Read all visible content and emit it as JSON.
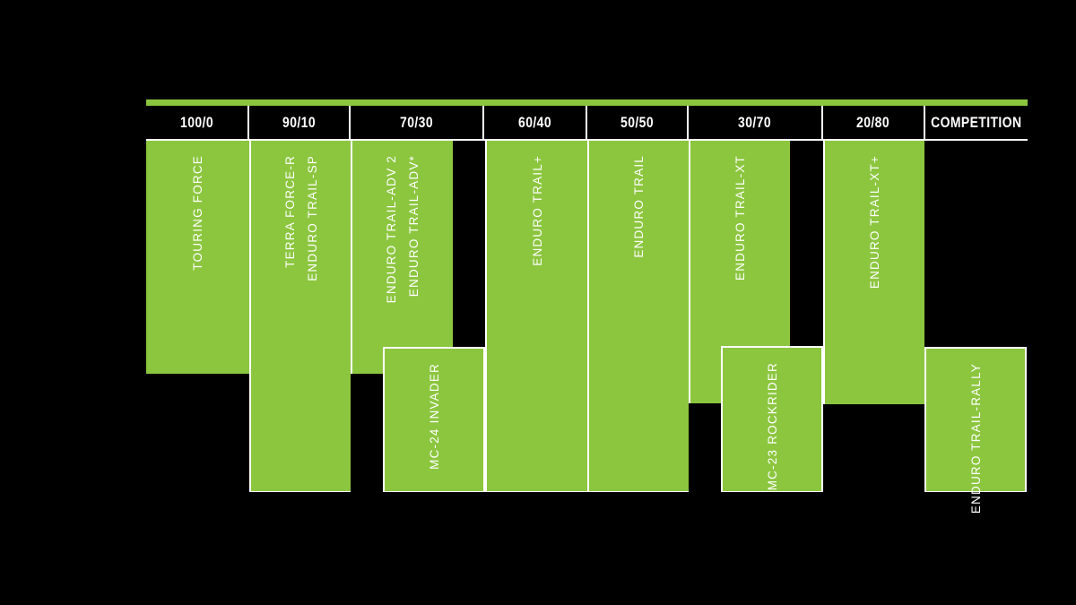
{
  "colors": {
    "background": "#000000",
    "green": "#8CC63F",
    "text": "#FFFFFF"
  },
  "header": {
    "columns": [
      "100/0",
      "90/10",
      "70/30",
      "60/40",
      "50/50",
      "30/70",
      "20/80",
      "COMPETITION"
    ]
  },
  "bars": [
    {
      "line1": "TOURING FORCE",
      "line2": ""
    },
    {
      "line1": "TERRA FORCE-R",
      "line2": "ENDURO TRAIL-SP"
    },
    {
      "line1": "ENDURO TRAIL-ADV 2",
      "line2": "ENDURO TRAIL-ADV*"
    },
    {
      "line1": "MC-24 INVADER",
      "line2": ""
    },
    {
      "line1": "ENDURO TRAIL+",
      "line2": ""
    },
    {
      "line1": "ENDURO TRAIL",
      "line2": ""
    },
    {
      "line1": "ENDURO TRAIL-XT",
      "line2": ""
    },
    {
      "line1": "MC-23 ROCKRIDER",
      "line2": ""
    },
    {
      "line1": "ENDURO TRAIL-XT+",
      "line2": ""
    },
    {
      "line1": "ENDURO TRAIL-RALLY",
      "line2": ""
    }
  ],
  "chart_data": {
    "type": "table",
    "title": "",
    "categories": [
      "100/0",
      "90/10",
      "70/30",
      "60/40",
      "50/50",
      "30/70",
      "20/80",
      "COMPETITION"
    ],
    "legend_position": "none",
    "grid": false,
    "rows": [
      {
        "models": [
          "TOURING FORCE"
        ],
        "category": "100/0",
        "band": "upper"
      },
      {
        "models": [
          "TERRA FORCE-R",
          "ENDURO TRAIL-SP"
        ],
        "category": "90/10",
        "band": "full"
      },
      {
        "models": [
          "ENDURO TRAIL-ADV 2",
          "ENDURO TRAIL-ADV*"
        ],
        "category": "70/30",
        "band": "upper"
      },
      {
        "models": [
          "MC-24 INVADER"
        ],
        "category": "70/30",
        "band": "lower"
      },
      {
        "models": [
          "ENDURO TRAIL+"
        ],
        "category": "60/40",
        "band": "full"
      },
      {
        "models": [
          "ENDURO TRAIL"
        ],
        "category": "50/50",
        "band": "full"
      },
      {
        "models": [
          "ENDURO TRAIL-XT"
        ],
        "category": "30/70",
        "band": "upper"
      },
      {
        "models": [
          "MC-23 ROCKRIDER"
        ],
        "category": "30/70",
        "band": "lower"
      },
      {
        "models": [
          "ENDURO TRAIL-XT+"
        ],
        "category": "20/80",
        "band": "upper"
      },
      {
        "models": [
          "ENDURO TRAIL-RALLY"
        ],
        "category": "COMPETITION",
        "band": "lower"
      }
    ]
  }
}
